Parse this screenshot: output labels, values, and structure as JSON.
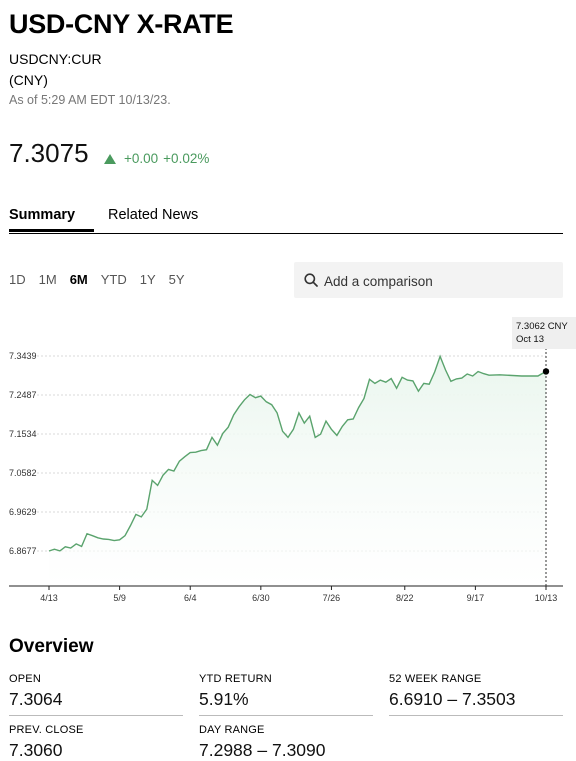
{
  "header": {
    "title": "USD-CNY X-RATE",
    "ticker": "USDCNY:CUR",
    "currency": "(CNY)",
    "as_of": "As of 5:29 AM EDT 10/13/23."
  },
  "quote": {
    "price": "7.3075",
    "change": "+0.00",
    "change_pct": "+0.02%",
    "direction": "up"
  },
  "tabs": [
    {
      "label": "Summary",
      "active": true
    },
    {
      "label": "Related News",
      "active": false
    }
  ],
  "ranges": [
    {
      "label": "1D",
      "active": false
    },
    {
      "label": "1M",
      "active": false
    },
    {
      "label": "6M",
      "active": true
    },
    {
      "label": "YTD",
      "active": false
    },
    {
      "label": "1Y",
      "active": false
    },
    {
      "label": "5Y",
      "active": false
    }
  ],
  "compare": {
    "placeholder": "Add a comparison"
  },
  "chart_data": {
    "type": "area",
    "x_ticks": [
      "4/13",
      "5/9",
      "6/4",
      "6/30",
      "7/26",
      "8/22",
      "9/17",
      "10/13"
    ],
    "y_ticks": [
      "6.8677",
      "6.9629",
      "7.0582",
      "7.1534",
      "7.2487",
      "7.3439"
    ],
    "ylim": [
      6.83,
      7.37
    ],
    "xlim": [
      "2023-04-13",
      "2023-10-13"
    ],
    "grid": true,
    "tooltip": {
      "value": "7.3062 CNY",
      "date": "Oct 13"
    },
    "colors": {
      "line": "#5aa36d",
      "fill": "#eaf6ee",
      "grid": "#d8d8d8"
    },
    "series": [
      {
        "values": [
          [
            "2023-04-13",
            6.8677
          ],
          [
            "2023-04-15",
            6.872
          ],
          [
            "2023-04-17",
            6.868
          ],
          [
            "2023-04-19",
            6.878
          ],
          [
            "2023-04-21",
            6.875
          ],
          [
            "2023-04-23",
            6.885
          ],
          [
            "2023-04-25",
            6.879
          ],
          [
            "2023-04-27",
            6.91
          ],
          [
            "2023-04-29",
            6.905
          ],
          [
            "2023-05-01",
            6.9
          ],
          [
            "2023-05-03",
            6.897
          ],
          [
            "2023-05-05",
            6.896
          ],
          [
            "2023-05-07",
            6.893
          ],
          [
            "2023-05-09",
            6.895
          ],
          [
            "2023-05-11",
            6.905
          ],
          [
            "2023-05-13",
            6.93
          ],
          [
            "2023-05-15",
            6.957
          ],
          [
            "2023-05-17",
            6.951
          ],
          [
            "2023-05-19",
            6.97
          ],
          [
            "2023-05-21",
            7.04
          ],
          [
            "2023-05-23",
            7.028
          ],
          [
            "2023-05-25",
            7.053
          ],
          [
            "2023-05-27",
            7.067
          ],
          [
            "2023-05-29",
            7.063
          ],
          [
            "2023-05-31",
            7.087
          ],
          [
            "2023-06-02",
            7.098
          ],
          [
            "2023-06-04",
            7.108
          ],
          [
            "2023-06-06",
            7.109
          ],
          [
            "2023-06-08",
            7.113
          ],
          [
            "2023-06-10",
            7.115
          ],
          [
            "2023-06-12",
            7.145
          ],
          [
            "2023-06-14",
            7.126
          ],
          [
            "2023-06-16",
            7.155
          ],
          [
            "2023-06-18",
            7.17
          ],
          [
            "2023-06-20",
            7.2
          ],
          [
            "2023-06-22",
            7.22
          ],
          [
            "2023-06-24",
            7.237
          ],
          [
            "2023-06-26",
            7.25
          ],
          [
            "2023-06-28",
            7.242
          ],
          [
            "2023-06-30",
            7.246
          ],
          [
            "2023-07-02",
            7.232
          ],
          [
            "2023-07-04",
            7.225
          ],
          [
            "2023-07-06",
            7.205
          ],
          [
            "2023-07-08",
            7.16
          ],
          [
            "2023-07-10",
            7.145
          ],
          [
            "2023-07-12",
            7.165
          ],
          [
            "2023-07-14",
            7.205
          ],
          [
            "2023-07-16",
            7.18
          ],
          [
            "2023-07-18",
            7.197
          ],
          [
            "2023-07-20",
            7.145
          ],
          [
            "2023-07-22",
            7.153
          ],
          [
            "2023-07-24",
            7.185
          ],
          [
            "2023-07-26",
            7.165
          ],
          [
            "2023-07-28",
            7.15
          ],
          [
            "2023-07-30",
            7.172
          ],
          [
            "2023-08-01",
            7.188
          ],
          [
            "2023-08-03",
            7.19
          ],
          [
            "2023-08-05",
            7.218
          ],
          [
            "2023-08-07",
            7.24
          ],
          [
            "2023-08-09",
            7.287
          ],
          [
            "2023-08-11",
            7.277
          ],
          [
            "2023-08-13",
            7.285
          ],
          [
            "2023-08-15",
            7.28
          ],
          [
            "2023-08-17",
            7.289
          ],
          [
            "2023-08-19",
            7.265
          ],
          [
            "2023-08-21",
            7.292
          ],
          [
            "2023-08-23",
            7.285
          ],
          [
            "2023-08-25",
            7.283
          ],
          [
            "2023-08-27",
            7.258
          ],
          [
            "2023-08-29",
            7.277
          ],
          [
            "2023-08-31",
            7.275
          ],
          [
            "2023-09-02",
            7.305
          ],
          [
            "2023-09-04",
            7.343
          ],
          [
            "2023-09-06",
            7.31
          ],
          [
            "2023-09-08",
            7.282
          ],
          [
            "2023-09-10",
            7.288
          ],
          [
            "2023-09-12",
            7.29
          ],
          [
            "2023-09-14",
            7.3
          ],
          [
            "2023-09-16",
            7.295
          ],
          [
            "2023-09-18",
            7.306
          ],
          [
            "2023-09-20",
            7.301
          ],
          [
            "2023-09-22",
            7.297
          ],
          [
            "2023-09-26",
            7.298
          ],
          [
            "2023-10-04",
            7.295
          ],
          [
            "2023-10-10",
            7.295
          ],
          [
            "2023-10-13",
            7.3062
          ]
        ]
      }
    ]
  },
  "overview": {
    "title": "Overview",
    "stats": [
      {
        "label": "OPEN",
        "value": "7.3064"
      },
      {
        "label": "YTD RETURN",
        "value": "5.91%"
      },
      {
        "label": "52 WEEK RANGE",
        "value": "6.6910 – 7.3503"
      },
      {
        "label": "PREV. CLOSE",
        "value": "7.3060"
      },
      {
        "label": "DAY RANGE",
        "value": "7.2988 – 7.3090"
      }
    ]
  }
}
